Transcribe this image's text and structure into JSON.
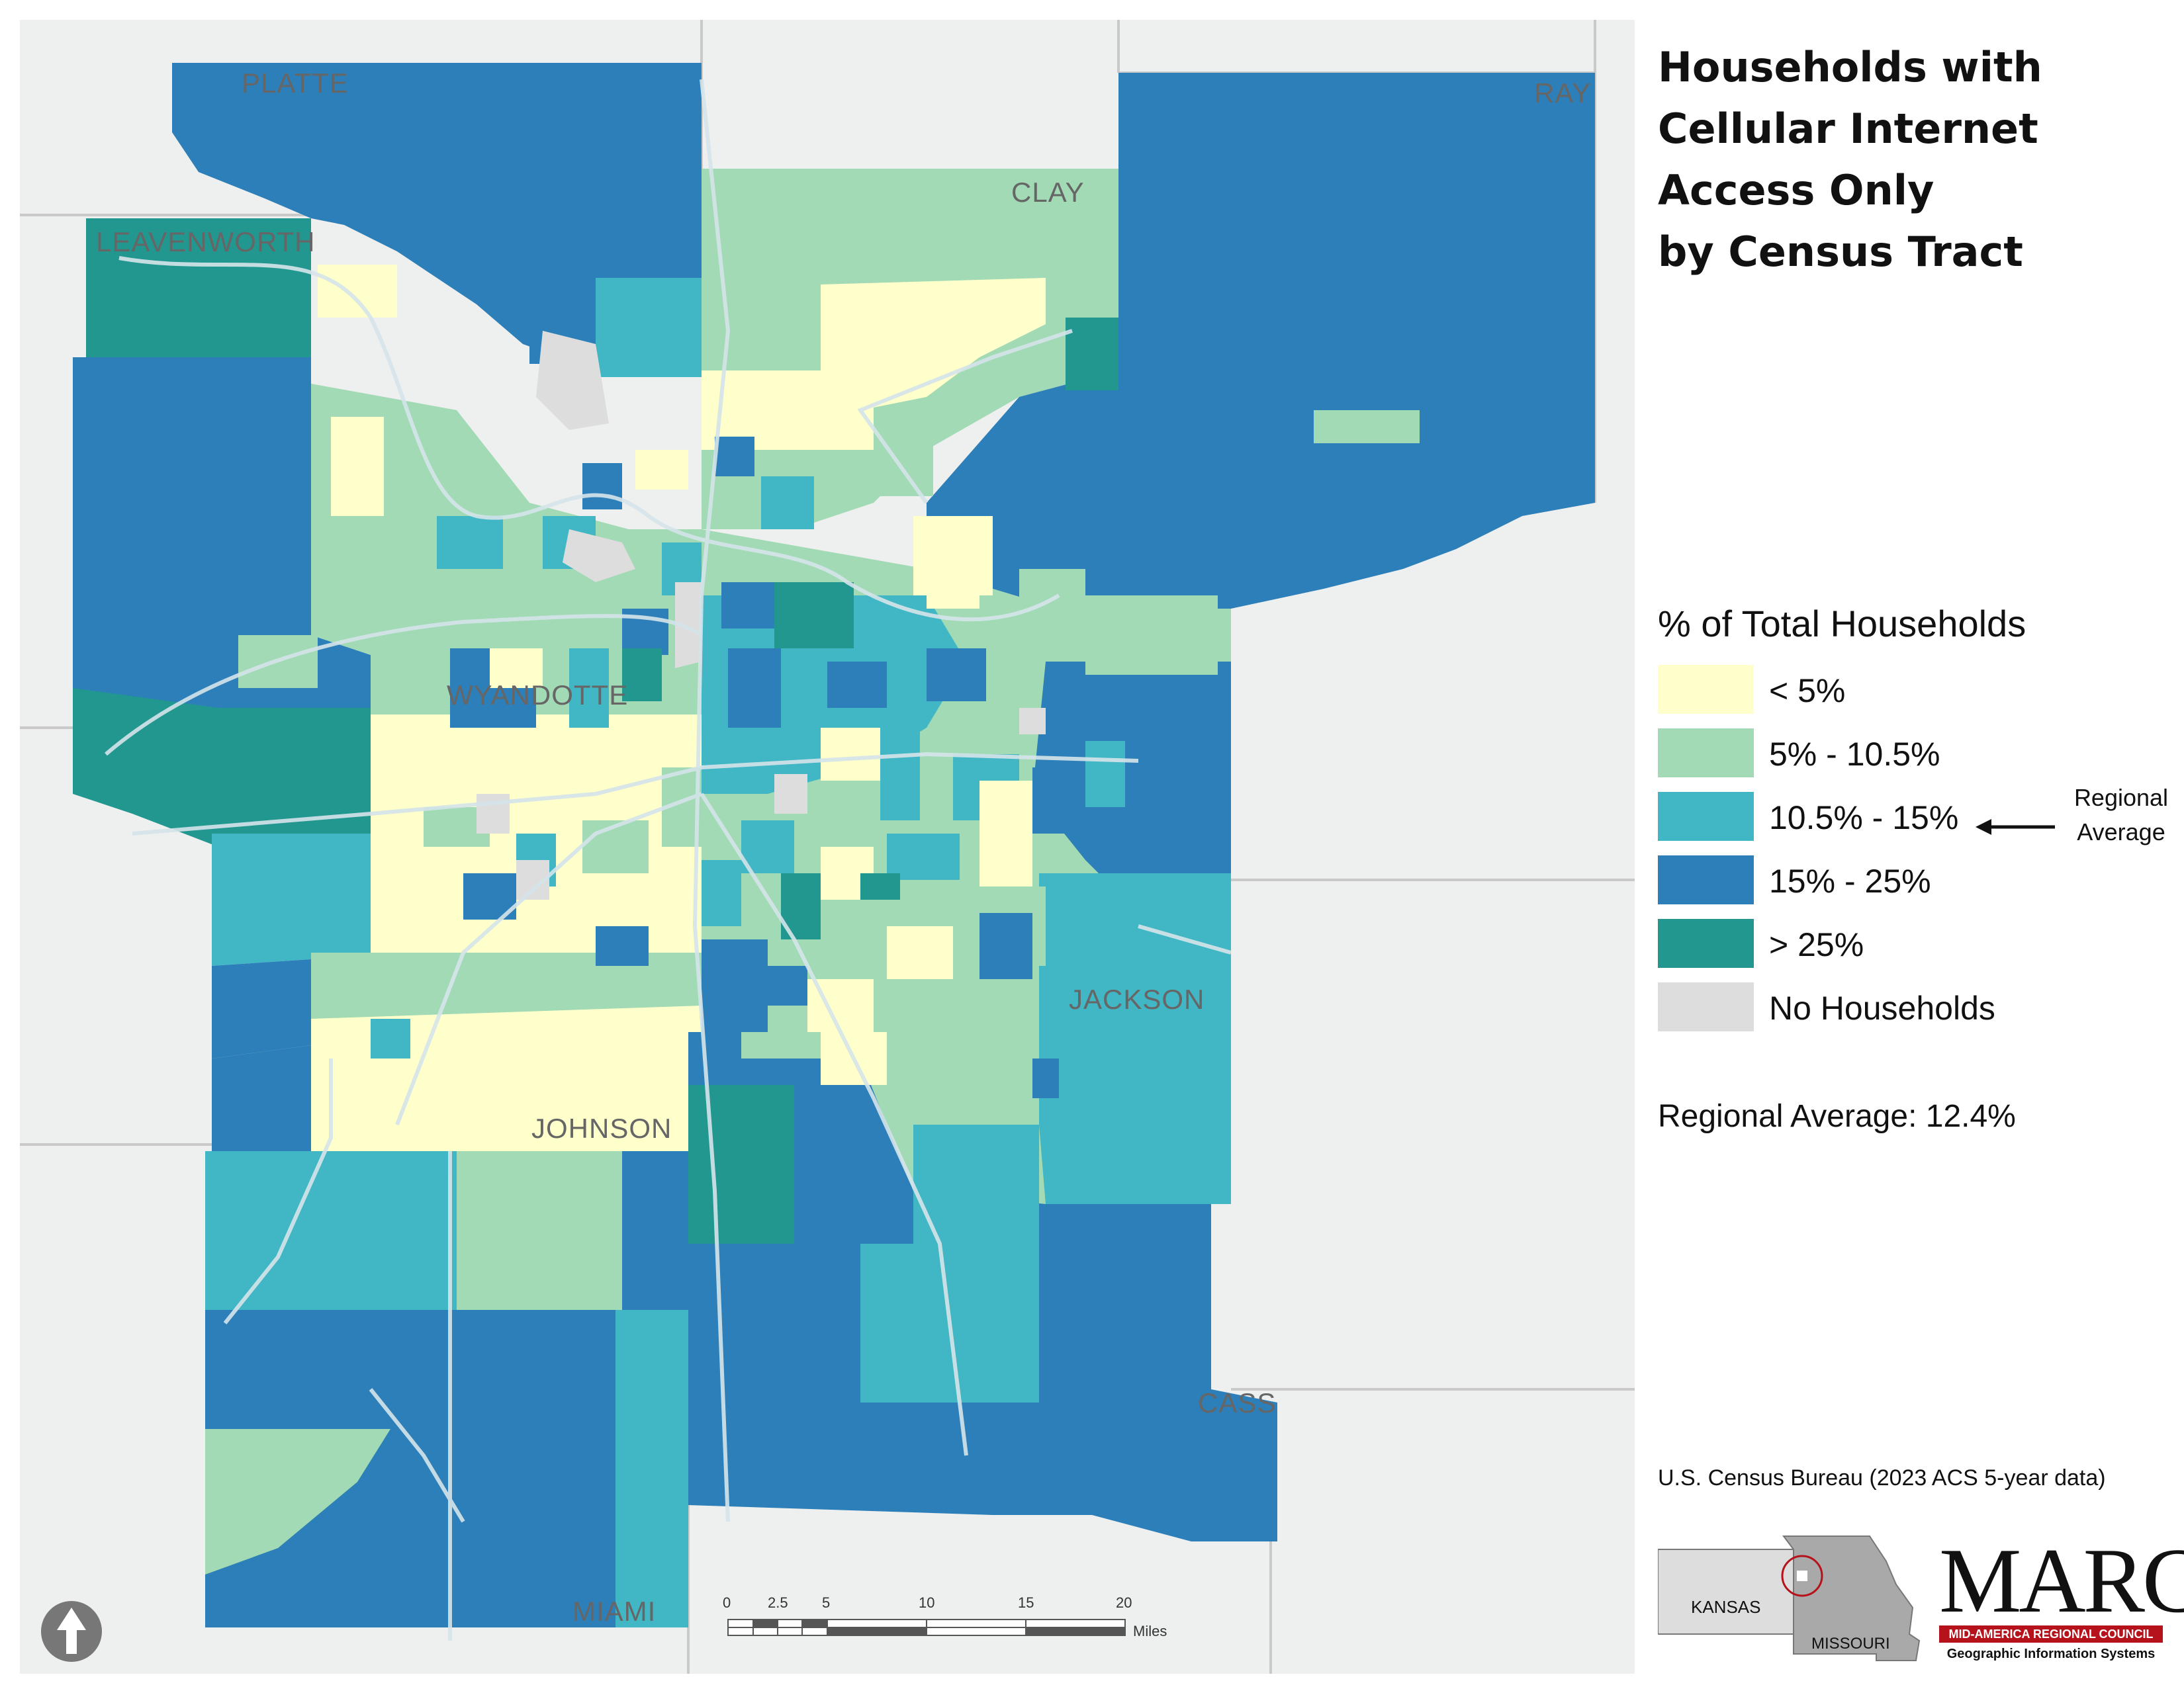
{
  "title": {
    "lines": [
      "Households with",
      "Cellular Internet",
      "Access Only",
      "by Census Tract"
    ]
  },
  "legend": {
    "heading": "% of Total Households",
    "items": [
      {
        "label": "< 5%",
        "color": "#ffffcc"
      },
      {
        "label": "5% - 10.5%",
        "color": "#a1dab4"
      },
      {
        "label": "10.5% - 15%",
        "color": "#41b6c4"
      },
      {
        "label": "15% - 25%",
        "color": "#2c7fb8"
      },
      {
        "label": "> 25%",
        "color": "#22978f"
      },
      {
        "label": "No Households",
        "color": "#dddddd"
      }
    ],
    "regional_marker": {
      "line1": "Regional",
      "line2": "Average"
    }
  },
  "regional_average": "Regional Average: 12.4%",
  "source": "U.S. Census Bureau (2023 ACS 5-year data)",
  "inset": {
    "kansas": "KANSAS",
    "missouri": "MISSOURI"
  },
  "logo": {
    "word": "MARC",
    "bar": "MID-AMERICA REGIONAL COUNCIL",
    "subtitle": "Geographic Information Systems"
  },
  "counties": {
    "platte": "PLATTE",
    "leavenworth": "LEAVENWORTH",
    "clay": "CLAY",
    "ray": "RAY",
    "wyandotte": "WYANDOTTE",
    "jackson": "JACKSON",
    "johnson": "JOHNSON",
    "cass": "CASS",
    "miami": "MIAMI"
  },
  "scale": {
    "ticks": [
      "0",
      "2.5",
      "5",
      "10",
      "15",
      "20"
    ],
    "unit": "Miles"
  },
  "colors": {
    "background_land": "#eeefef",
    "outer_border": "#dedede",
    "roads": "#d5e4ea"
  }
}
